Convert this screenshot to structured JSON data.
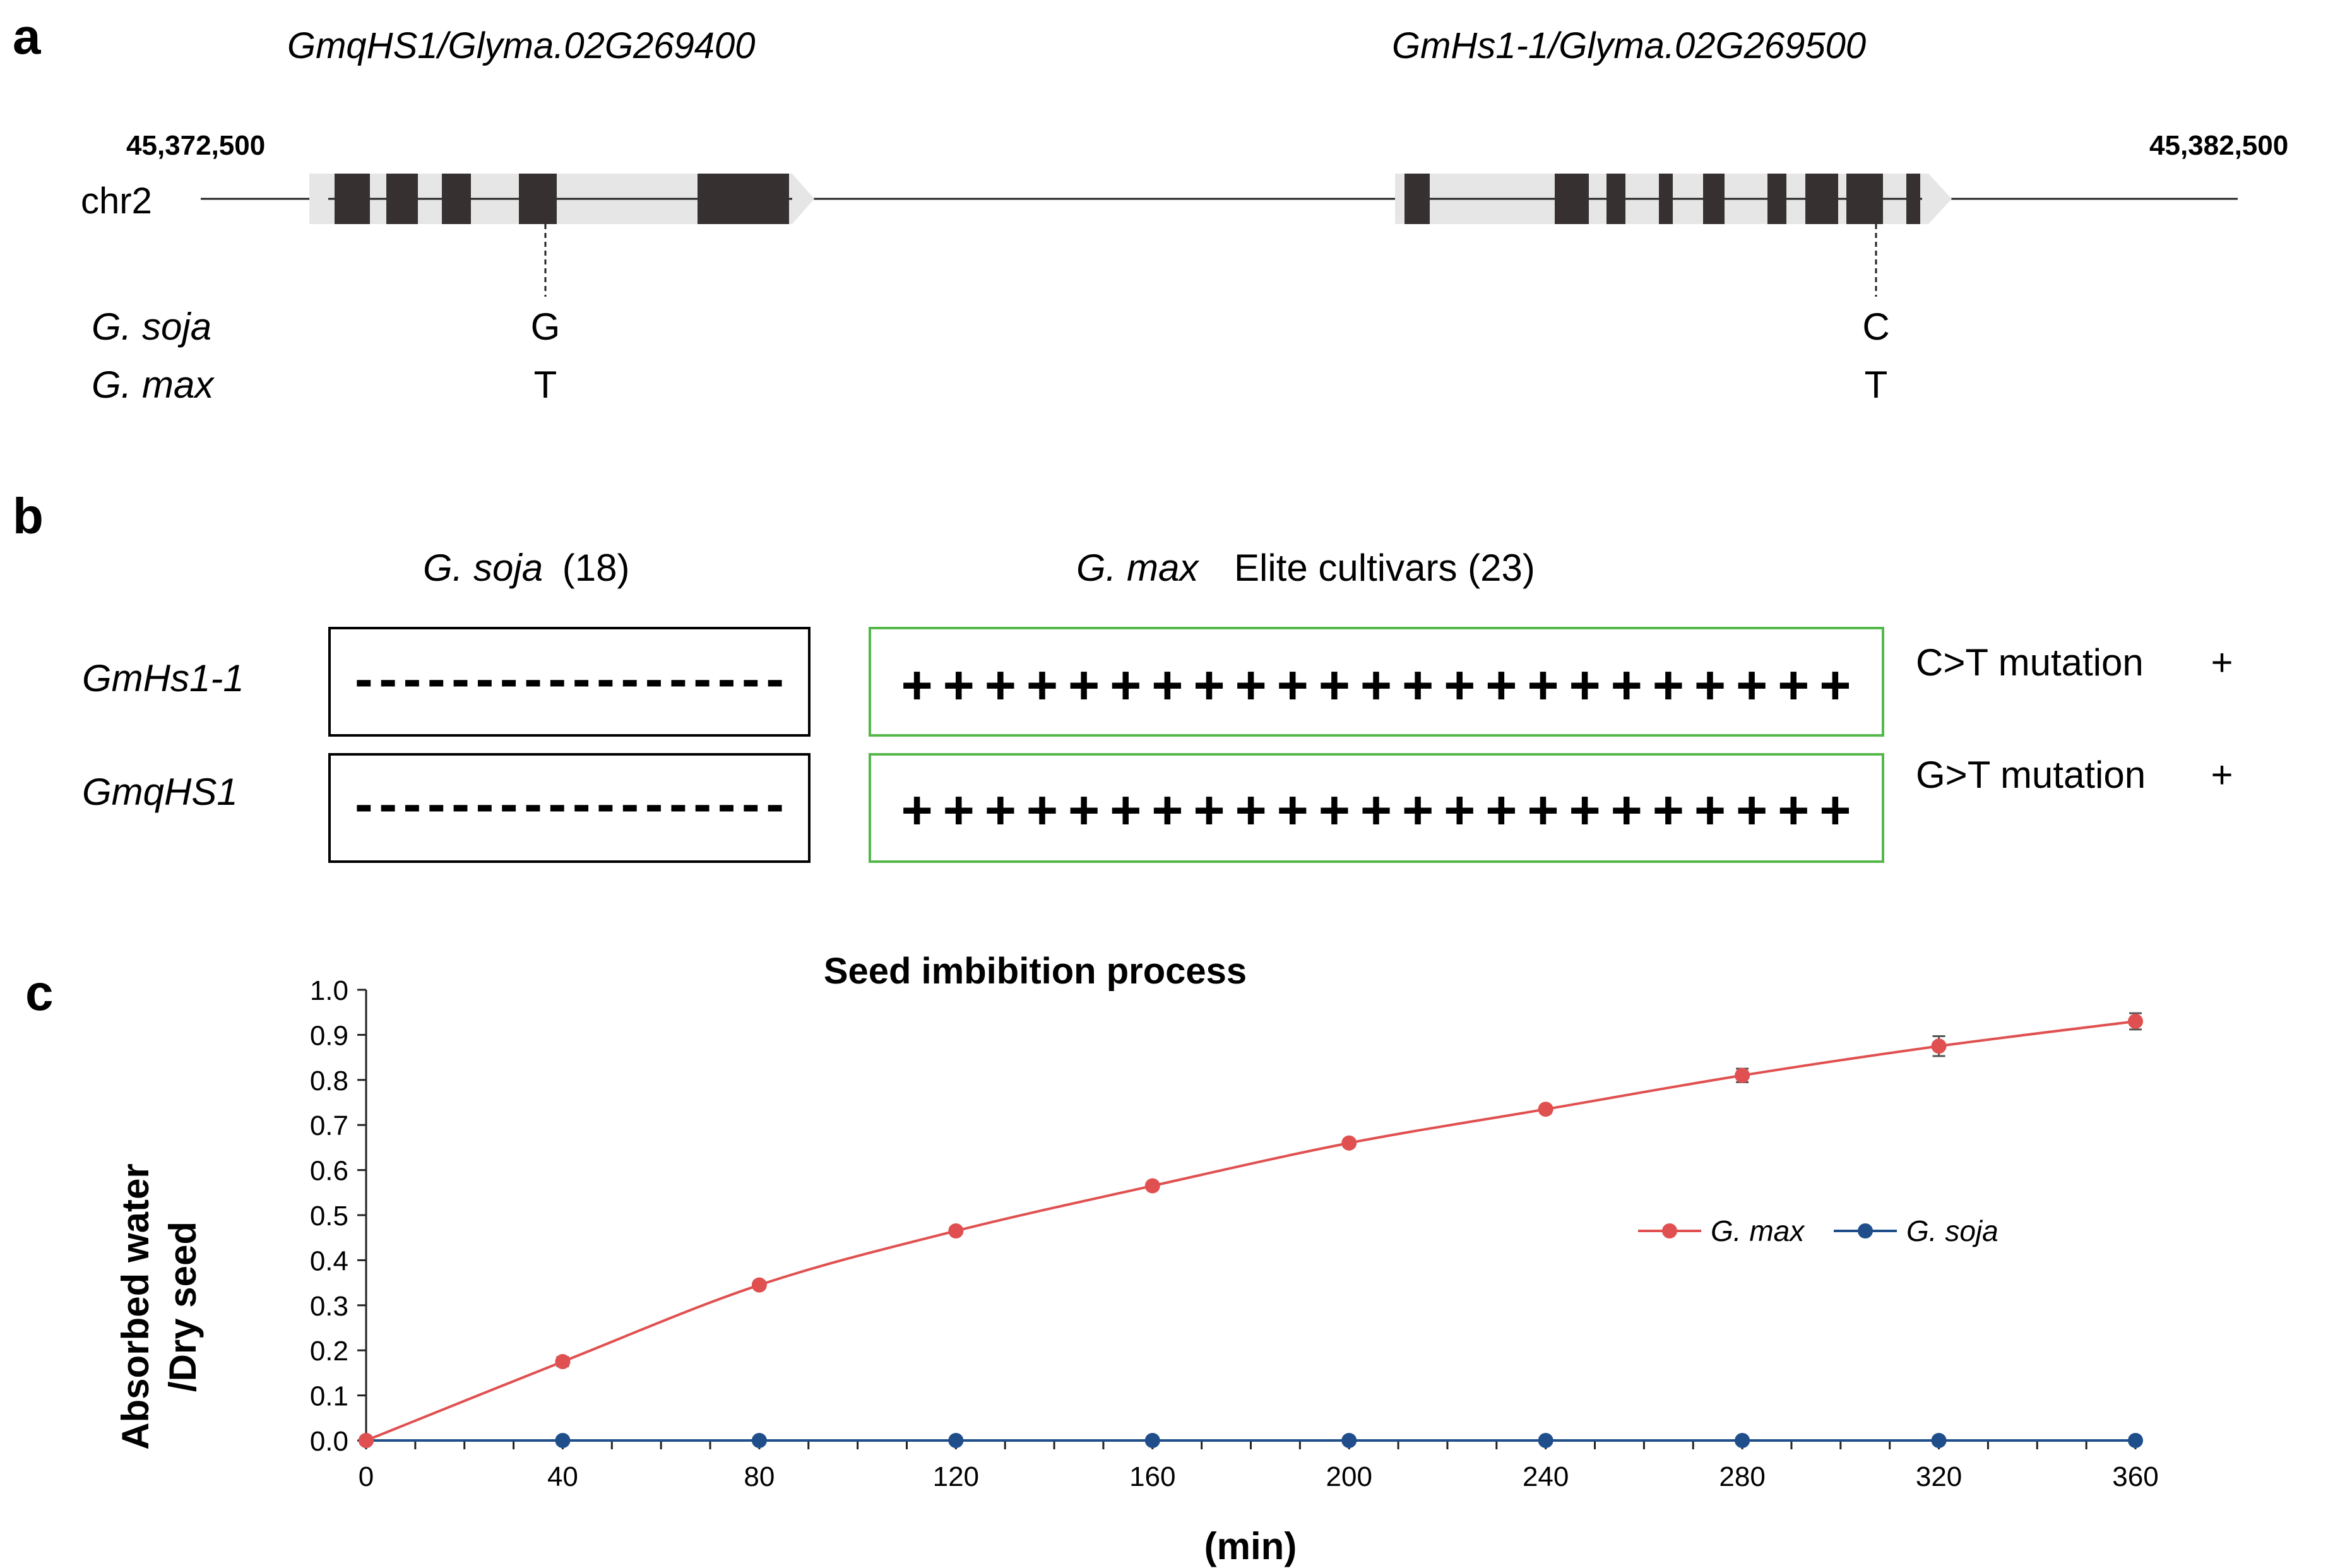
{
  "panel_a": {
    "letter": "a",
    "gene1_label": "GmqHS1/Glyma.02G269400",
    "gene2_label": "GmHs1-1/Glyma.02G269500",
    "coord_left": "45,372,500",
    "coord_right": "45,382,500",
    "chr_label": "chr2",
    "row1_species": "G. soja",
    "row2_species": "G. max",
    "snp1_soja": "G",
    "snp1_max": "T",
    "snp2_soja": "C",
    "snp2_max": "T"
  },
  "panel_b": {
    "letter": "b",
    "soja_name": "G. soja",
    "soja_count": "(18)",
    "max_name": "G. max",
    "max_desc": "Elite cultivars (23)",
    "row1_gene": "GmHs1-1",
    "row2_gene": "GmqHS1",
    "soja_symbols": "------------------",
    "max_symbols": "+++++++++++++++++++++++",
    "row1_mutation": "C>T mutation",
    "row1_sign": "+",
    "row2_mutation": "G>T mutation",
    "row2_sign": "+",
    "colors": {
      "soja_box": "#000000",
      "max_box": "#55b84a"
    }
  },
  "panel_c": {
    "letter": "c"
  },
  "chart_data": {
    "type": "line",
    "title": "Seed imbibition process",
    "xlabel": "(min)",
    "ylabel_line1": "Absorbed water",
    "ylabel_line2": "/Dry seed",
    "x": [
      0,
      40,
      80,
      120,
      160,
      200,
      240,
      280,
      320,
      360
    ],
    "xlim": [
      0,
      360
    ],
    "ylim": [
      0,
      1.0
    ],
    "xticks": [
      0,
      40,
      80,
      120,
      160,
      200,
      240,
      280,
      320,
      360
    ],
    "yticks": [
      0.0,
      0.1,
      0.2,
      0.3,
      0.4,
      0.5,
      0.6,
      0.7,
      0.8,
      0.9,
      1.0
    ],
    "legend_position": "center-right",
    "series": [
      {
        "name": "G. max",
        "color": "#e05050",
        "values": [
          0,
          0.175,
          0.345,
          0.465,
          0.565,
          0.66,
          0.735,
          0.81,
          0.875,
          0.93
        ],
        "errors": [
          0,
          0.01,
          0.008,
          0.008,
          0.008,
          0.008,
          0.008,
          0.015,
          0.022,
          0.018
        ]
      },
      {
        "name": "G. soja",
        "color": "#1f4e8a",
        "values": [
          0,
          0,
          0,
          0,
          0,
          0,
          0,
          0,
          0,
          0
        ],
        "errors": [
          0,
          0,
          0,
          0,
          0,
          0,
          0,
          0,
          0,
          0
        ]
      }
    ]
  }
}
